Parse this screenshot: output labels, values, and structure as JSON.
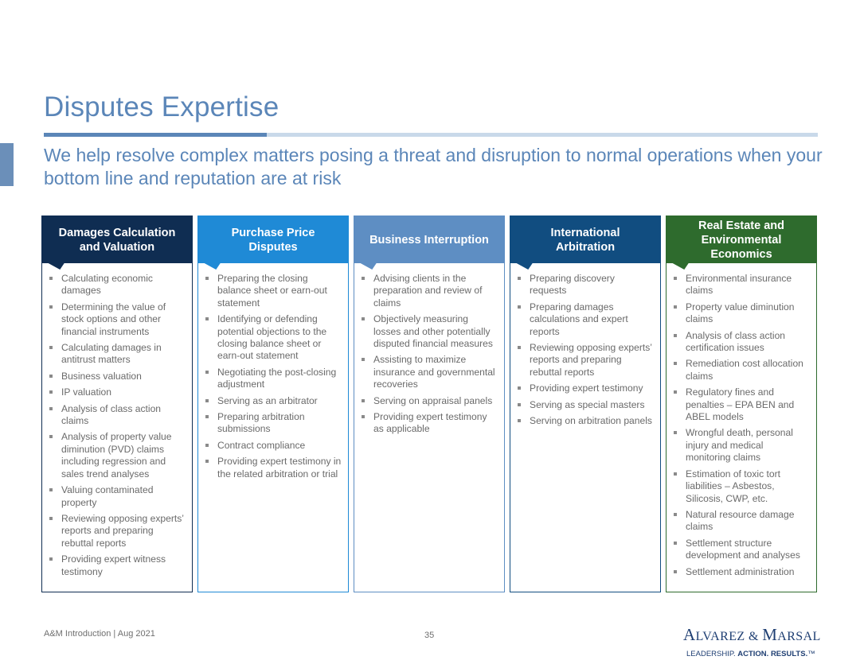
{
  "slide": {
    "title": "Disputes Expertise",
    "subtitle": "We help resolve complex matters posing a threat and disruption to normal operations when your bottom line and reputation are at risk"
  },
  "columns": [
    {
      "header": "Damages Calculation\nand Valuation",
      "color": "#0f2d52",
      "items": [
        "Calculating economic damages",
        "Determining the value of stock options and other financial instruments",
        "Calculating damages in antitrust matters",
        "Business valuation",
        "IP valuation",
        "Analysis of class action claims",
        "Analysis of property value diminution (PVD) claims including regression and sales trend analyses",
        "Valuing contaminated property",
        "Reviewing opposing experts’ reports and preparing rebuttal reports",
        "Providing expert witness testimony"
      ]
    },
    {
      "header": "Purchase Price\nDisputes",
      "color": "#1f8ad6",
      "items": [
        "Preparing the closing balance sheet or earn-out statement",
        "Identifying or defending potential objections to the closing balance sheet or earn-out statement",
        "Negotiating the post-closing adjustment",
        "Serving as an arbitrator",
        "Preparing arbitration submissions",
        "Contract compliance",
        "Providing expert testimony in the related arbitration or trial"
      ]
    },
    {
      "header": "Business Interruption",
      "color": "#5e8ec3",
      "items": [
        "Advising clients in the preparation and review of claims",
        "Objectively measuring losses and other potentially disputed financial measures",
        "Assisting to maximize insurance and governmental recoveries",
        "Serving on appraisal panels",
        "Providing expert testimony as applicable"
      ]
    },
    {
      "header": "International\nArbitration",
      "color": "#114d80",
      "items": [
        "Preparing discovery requests",
        "Preparing damages calculations and expert reports",
        "Reviewing opposing experts’ reports and preparing rebuttal reports",
        "Providing expert testimony",
        "Serving as special masters",
        "Serving on arbitration panels"
      ]
    },
    {
      "header": "Real Estate and\nEnvironmental\nEconomics",
      "color": "#2e6b2d",
      "items": [
        "Environmental insurance claims",
        "Property value diminution claims",
        "Analysis of class action certification issues",
        "Remediation cost allocation claims",
        "Regulatory fines and penalties – EPA BEN and ABEL models",
        "Wrongful death, personal injury and medical monitoring claims",
        "Estimation of toxic tort liabilities – Asbestos, Silicosis, CWP, etc.",
        "Natural resource damage claims",
        "Settlement structure development and analyses",
        "Settlement administration"
      ]
    }
  ],
  "footer": {
    "left": "A&M Introduction | Aug 2021",
    "page": "35"
  },
  "logo": {
    "name_a": "A",
    "name_b": "LVAREZ & ",
    "name_c": "M",
    "name_d": "ARSAL",
    "tag_normal": "LEADERSHIP. ",
    "tag_bold": "ACTION. RESULTS.",
    "tag_mark": "™"
  }
}
